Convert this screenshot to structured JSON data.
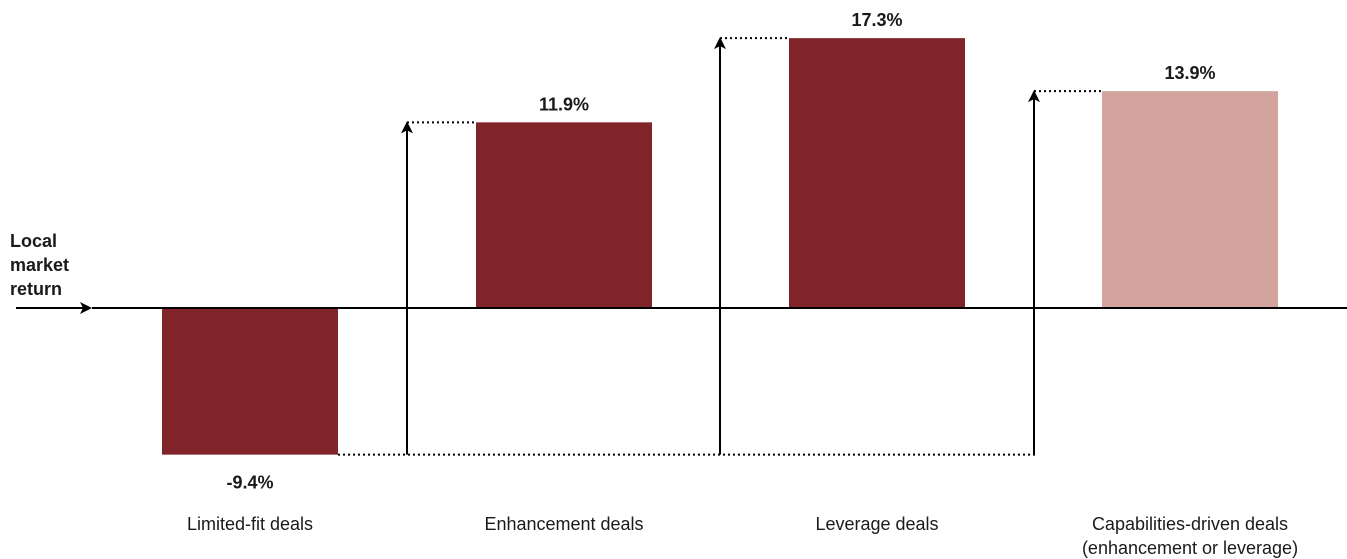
{
  "chart_data": {
    "type": "bar",
    "baseline_label_lines": [
      "Local",
      "market",
      "return"
    ],
    "categories": [
      [
        "Limited-fit deals"
      ],
      [
        "Enhancement deals"
      ],
      [
        "Leverage deals"
      ],
      [
        "Capabilities-driven deals",
        "(enhancement or leverage)"
      ]
    ],
    "values": [
      -9.4,
      11.9,
      17.3,
      13.9
    ],
    "value_labels": [
      "-9.4%",
      "11.9%",
      "17.3%",
      "13.9%"
    ],
    "bar_colors": [
      "#80242a",
      "#80242a",
      "#80242a",
      "#d3a39e"
    ],
    "ylim": [
      -10.5,
      18.2
    ],
    "grid": false,
    "legend": "none"
  },
  "colors": {
    "axis": "#000000",
    "text": "#1a1a1a"
  }
}
